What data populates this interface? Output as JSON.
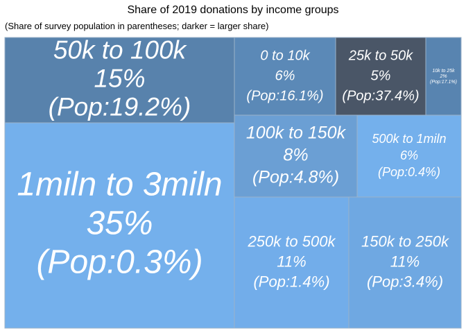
{
  "chart_data": {
    "type": "treemap",
    "title": "Share of 2019 donations by income groups",
    "subtitle": "(Share of survey population in parentheses; darker = larger share)",
    "items": [
      {
        "label": "1miln to 3miln",
        "share": "35%",
        "pop": "(Pop:0.3%)",
        "value": 35,
        "pop_value": 0.3,
        "color": "#74b0ec"
      },
      {
        "label": "50k to 100k",
        "share": "15%",
        "pop": "(Pop:19.2%)",
        "value": 15,
        "pop_value": 19.2,
        "color": "#5882ac"
      },
      {
        "label": "0 to 10k",
        "share": "6%",
        "pop": "(Pop:16.1%)",
        "value": 6,
        "pop_value": 16.1,
        "color": "#5b89b7"
      },
      {
        "label": "25k to 50k",
        "share": "5%",
        "pop": "(Pop:37.4%)",
        "value": 5,
        "pop_value": 37.4,
        "color": "#4a5667"
      },
      {
        "label": "10k to 25k",
        "share": "2%",
        "pop": "(Pop:17.1%)",
        "value": 2,
        "pop_value": 17.1,
        "color": "#5884b0"
      },
      {
        "label": "100k to 150k",
        "share": "8%",
        "pop": "(Pop:4.8%)",
        "value": 8,
        "pop_value": 4.8,
        "color": "#6b9fd4"
      },
      {
        "label": "500k to 1miln",
        "share": "6%",
        "pop": "(Pop:0.4%)",
        "value": 6,
        "pop_value": 0.4,
        "color": "#74b0ec"
      },
      {
        "label": "250k to 500k",
        "share": "11%",
        "pop": "(Pop:1.4%)",
        "value": 11,
        "pop_value": 1.4,
        "color": "#72adea"
      },
      {
        "label": "150k to 250k",
        "share": "11%",
        "pop": "(Pop:3.4%)",
        "value": 11,
        "pop_value": 3.4,
        "color": "#6fa8e2"
      }
    ]
  }
}
